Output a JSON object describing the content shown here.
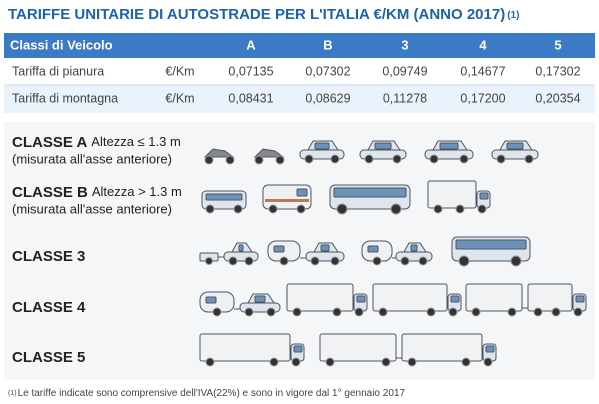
{
  "header": {
    "title": "TARIFFE UNITARIE DI AUTOSTRADE PER L'ITALIA €/KM (ANNO 2017)",
    "title_note": "(1)"
  },
  "table": {
    "header": [
      "Classi di Veicolo",
      "A",
      "B",
      "3",
      "4",
      "5"
    ],
    "rows": [
      [
        "Tariffa di pianura",
        "€/Km",
        "0,07135",
        "0,07302",
        "0,09749",
        "0,14677",
        "0,17302"
      ],
      [
        "Tariffa di montagna",
        "€/Km",
        "0,08431",
        "0,08629",
        "0,11278",
        "0,17200",
        "0,20354"
      ]
    ]
  },
  "classes": [
    {
      "name": "CLASSE A",
      "detail": "Altezza ≤ 1.3 m",
      "note": "(misurata all'asse anteriore)"
    },
    {
      "name": "CLASSE B",
      "detail": "Altezza > 1.3 m",
      "note": "(misurata all'asse anteriore)"
    },
    {
      "name": "CLASSE 3"
    },
    {
      "name": "CLASSE 4"
    },
    {
      "name": "CLASSE 5"
    }
  ],
  "footnote": {
    "marker": "(1)",
    "text": "Le tariffe indicate sono comprensive dell'IVA(22%) e sono in vigore dal 1° gennaio 2017"
  }
}
